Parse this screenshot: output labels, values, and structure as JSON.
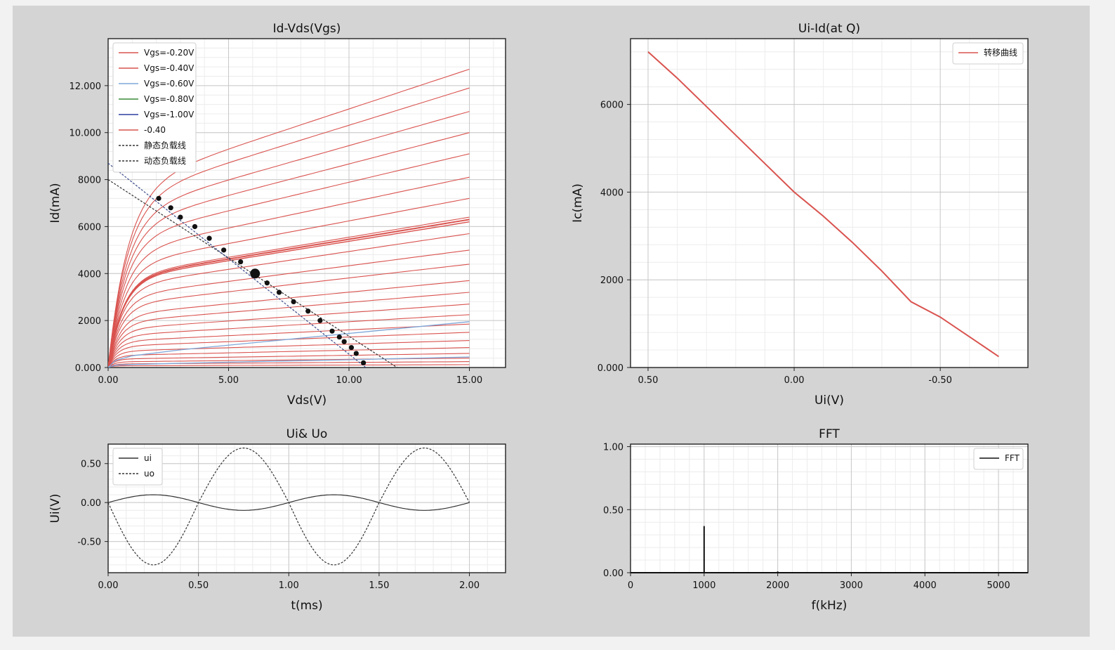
{
  "chart_data": [
    {
      "type": "line",
      "title": "Id-Vds(Vgs)",
      "xlabel": "Vds(V)",
      "ylabel": "Id(mA)",
      "xlim": [
        0,
        16.5
      ],
      "ylim": [
        0,
        14000
      ],
      "xticks": [
        0,
        5,
        10,
        15
      ],
      "xtick_labels": [
        "0.00",
        "5.00",
        "10.00",
        "15.00"
      ],
      "yticks": [
        0,
        2000,
        4000,
        6000,
        8000,
        10000,
        12000
      ],
      "ytick_labels": [
        "0.000",
        "2000",
        "4000",
        "6000",
        "8000",
        "10.000",
        "12.000"
      ],
      "grid": true,
      "legend": "top-left",
      "legend_entries": [
        {
          "label": "Vgs=-0.20V",
          "color": "#d9534f",
          "style": "solid"
        },
        {
          "label": "Vgs=-0.40V",
          "color": "#d9534f",
          "style": "solid"
        },
        {
          "label": "Vgs=-0.60V",
          "color": "#7fa7d9",
          "style": "solid"
        },
        {
          "label": "Vgs=-0.80V",
          "color": "#3a8a3a",
          "style": "solid"
        },
        {
          "label": "Vgs=-1.00V",
          "color": "#2f3fa0",
          "style": "solid"
        },
        {
          "label": "-0.40",
          "color": "#d9534f",
          "style": "solid"
        },
        {
          "label": "静态负载线",
          "color": "#333333",
          "style": "dashed"
        },
        {
          "label": "动态负载线",
          "color": "#333333",
          "style": "dashed"
        }
      ],
      "curve_color": "#d9534f",
      "blue_curve_color": "#7fa7d9",
      "curve_saturation_currents": [
        12700,
        11900,
        10900,
        10000,
        9100,
        8100,
        7200,
        6400,
        5700,
        5000,
        4400,
        3700,
        3200,
        2700,
        2250,
        1850,
        1500,
        1150,
        850,
        600,
        400,
        250,
        120
      ],
      "blue_curves": [
        {
          "x": [
            0,
            0.3,
            1,
            3,
            6,
            10,
            15
          ],
          "y": [
            0,
            300,
            500,
            750,
            1050,
            1450,
            1950
          ]
        },
        {
          "x": [
            0,
            0.3,
            1,
            3,
            6,
            10,
            15
          ],
          "y": [
            0,
            100,
            130,
            180,
            250,
            330,
            450
          ]
        }
      ],
      "static_load_line": {
        "x": [
          0,
          12
        ],
        "y": [
          8000,
          0
        ]
      },
      "dynamic_load_line": {
        "x": [
          0,
          10.7
        ],
        "y": [
          8700,
          0
        ]
      },
      "operating_points": {
        "x": [
          2.1,
          2.6,
          3.0,
          3.6,
          4.2,
          4.8,
          5.5,
          6.1,
          6.6,
          7.1,
          7.7,
          8.3,
          8.8,
          9.3,
          9.6,
          9.8,
          10.1,
          10.3,
          10.6
        ],
        "y": [
          7200,
          6800,
          6400,
          6000,
          5500,
          5000,
          4500,
          4000,
          3600,
          3200,
          2800,
          2400,
          2000,
          1550,
          1300,
          1100,
          850,
          600,
          200
        ]
      },
      "q_point": {
        "x": 6.1,
        "y": 4000
      }
    },
    {
      "type": "line",
      "title": "Ui-Id(at Q)",
      "xlabel": "Ui(V)",
      "ylabel": "Ic(mA)",
      "xlim": [
        0.56,
        -0.8
      ],
      "ylim": [
        0,
        7500
      ],
      "xticks": [
        0.5,
        0,
        -0.5
      ],
      "xtick_labels": [
        "0.50",
        "0.00",
        "-0.50"
      ],
      "yticks": [
        0,
        2000,
        4000,
        6000
      ],
      "ytick_labels": [
        "0.000",
        "2000",
        "4000",
        "6000"
      ],
      "grid": true,
      "legend": "top-right",
      "legend_entries": [
        {
          "label": "转移曲线",
          "color": "#d9534f",
          "style": "solid"
        }
      ],
      "series": [
        {
          "name": "转移曲线",
          "color": "#d9534f",
          "x": [
            0.5,
            0.4,
            0.3,
            0.2,
            0.1,
            0.0,
            -0.1,
            -0.2,
            -0.3,
            -0.4,
            -0.5,
            -0.6,
            -0.7
          ],
          "y": [
            7200,
            6600,
            5950,
            5300,
            4650,
            4000,
            3450,
            2850,
            2200,
            1500,
            1150,
            700,
            250
          ]
        }
      ]
    },
    {
      "type": "line",
      "title": "Ui& Uo",
      "xlabel": "t(ms)",
      "ylabel": "Ui(V)",
      "xlim": [
        0,
        2.2
      ],
      "ylim": [
        -0.9,
        0.75
      ],
      "xticks": [
        0,
        0.5,
        1.0,
        1.5,
        2.0
      ],
      "xtick_labels": [
        "0.00",
        "0.50",
        "1.00",
        "1.50",
        "2.00"
      ],
      "yticks": [
        -0.5,
        0,
        0.5
      ],
      "ytick_labels": [
        "-0.50",
        "0.00",
        "0.50"
      ],
      "grid": true,
      "legend": "top-left",
      "legend_entries": [
        {
          "label": "ui",
          "color": "#333333",
          "style": "solid"
        },
        {
          "label": "uo",
          "color": "#333333",
          "style": "dashed"
        }
      ],
      "series": [
        {
          "name": "ui",
          "style": "solid",
          "amplitude": 0.1,
          "phase": "sin",
          "period_ms": 1.0
        },
        {
          "name": "uo",
          "style": "dashed",
          "amplitude_pos": 0.7,
          "amplitude_neg": 0.8,
          "phase": "-sin",
          "period_ms": 1.0
        }
      ],
      "t_range": [
        0,
        2.0
      ]
    },
    {
      "type": "line",
      "title": "FFT",
      "xlabel": "f(kHz)",
      "ylabel": "",
      "xlim": [
        0,
        5400
      ],
      "ylim": [
        0,
        1.02
      ],
      "xticks": [
        0,
        1000,
        2000,
        3000,
        4000,
        5000
      ],
      "xtick_labels": [
        "0",
        "1000",
        "2000",
        "3000",
        "4000",
        "5000"
      ],
      "yticks": [
        0,
        0.5,
        1.0
      ],
      "ytick_labels": [
        "0.00",
        "0.50",
        "1.00"
      ],
      "grid": true,
      "legend": "top-right",
      "legend_entries": [
        {
          "label": "FFT",
          "color": "#111111",
          "style": "solid"
        }
      ],
      "series": [
        {
          "name": "FFT",
          "color": "#111111",
          "x": [
            1000,
            2000
          ],
          "y": [
            0.37,
            0.01
          ]
        }
      ]
    }
  ]
}
